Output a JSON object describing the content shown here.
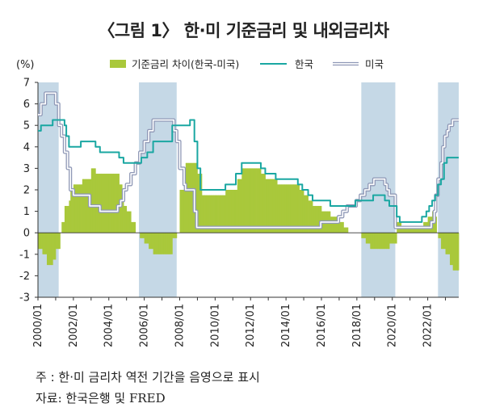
{
  "title": "〈그림 1〉 한·미 기준금리 및 내외금리차",
  "note": "주 : 한·미 금리차 역전 기간을 음영으로 표시",
  "source": "자료: 한국은행 및 FRED",
  "colors": {
    "korea": "#1aa7a2",
    "us": "#8f98b6",
    "diff": "#a9c83b",
    "shade": "#c5d8e6",
    "axis": "#333333"
  },
  "chart_data": {
    "type": "line",
    "title": "〈그림 1〉 한·미 기준금리 및 내외금리차",
    "ylabel": "(%)",
    "ylim": [
      -3,
      7
    ],
    "yticks": [
      -3,
      -2,
      -1,
      0,
      1,
      2,
      3,
      4,
      5,
      6,
      7
    ],
    "xlim": [
      2000.0,
      2023.75
    ],
    "xticks": [
      "2000/01",
      "2002/01",
      "2004/01",
      "2006/01",
      "2008/01",
      "2010/01",
      "2012/01",
      "2014/01",
      "2016/01",
      "2018/01",
      "2020/01",
      "2022/01"
    ],
    "legend": [
      "기준금리 차이(한국-미국)",
      "한국",
      "미국"
    ],
    "legend_position": "top",
    "shaded_periods": [
      [
        2000.0,
        2001.17
      ],
      [
        2005.7,
        2007.83
      ],
      [
        2018.25,
        2020.17
      ],
      [
        2022.58,
        2023.75
      ]
    ],
    "series": [
      {
        "name": "한국",
        "style": "line",
        "points": [
          [
            2000.0,
            4.75
          ],
          [
            2000.17,
            5.0
          ],
          [
            2000.83,
            5.25
          ],
          [
            2001.5,
            5.0
          ],
          [
            2001.6,
            4.5
          ],
          [
            2001.75,
            4.0
          ],
          [
            2002.42,
            4.25
          ],
          [
            2003.25,
            4.0
          ],
          [
            2003.5,
            3.75
          ],
          [
            2004.58,
            3.5
          ],
          [
            2004.83,
            3.25
          ],
          [
            2005.83,
            3.5
          ],
          [
            2006.17,
            3.75
          ],
          [
            2006.5,
            4.25
          ],
          [
            2007.58,
            5.0
          ],
          [
            2008.58,
            5.25
          ],
          [
            2008.83,
            4.25
          ],
          [
            2009.0,
            3.0
          ],
          [
            2009.17,
            2.0
          ],
          [
            2010.58,
            2.25
          ],
          [
            2011.17,
            2.75
          ],
          [
            2011.5,
            3.25
          ],
          [
            2012.58,
            3.0
          ],
          [
            2012.83,
            2.75
          ],
          [
            2013.42,
            2.5
          ],
          [
            2014.67,
            2.25
          ],
          [
            2014.92,
            2.0
          ],
          [
            2015.25,
            1.75
          ],
          [
            2015.5,
            1.5
          ],
          [
            2016.5,
            1.25
          ],
          [
            2017.92,
            1.5
          ],
          [
            2018.92,
            1.75
          ],
          [
            2019.58,
            1.5
          ],
          [
            2019.83,
            1.25
          ],
          [
            2020.25,
            0.75
          ],
          [
            2020.42,
            0.5
          ],
          [
            2021.67,
            0.75
          ],
          [
            2021.92,
            1.0
          ],
          [
            2022.08,
            1.25
          ],
          [
            2022.25,
            1.5
          ],
          [
            2022.42,
            1.75
          ],
          [
            2022.58,
            2.25
          ],
          [
            2022.75,
            2.5
          ],
          [
            2022.92,
            3.25
          ],
          [
            2023.08,
            3.5
          ],
          [
            2023.75,
            3.5
          ]
        ]
      },
      {
        "name": "미국",
        "style": "double-line",
        "points": [
          [
            2000.0,
            5.5
          ],
          [
            2000.17,
            6.0
          ],
          [
            2000.42,
            6.5
          ],
          [
            2001.0,
            6.0
          ],
          [
            2001.17,
            5.0
          ],
          [
            2001.33,
            4.5
          ],
          [
            2001.5,
            3.75
          ],
          [
            2001.67,
            3.0
          ],
          [
            2001.83,
            2.0
          ],
          [
            2002.0,
            1.75
          ],
          [
            2002.92,
            1.25
          ],
          [
            2003.5,
            1.0
          ],
          [
            2004.5,
            1.25
          ],
          [
            2004.67,
            1.5
          ],
          [
            2004.83,
            2.0
          ],
          [
            2005.0,
            2.25
          ],
          [
            2005.25,
            2.75
          ],
          [
            2005.5,
            3.25
          ],
          [
            2005.75,
            3.75
          ],
          [
            2006.0,
            4.25
          ],
          [
            2006.25,
            4.75
          ],
          [
            2006.5,
            5.25
          ],
          [
            2007.67,
            4.75
          ],
          [
            2007.83,
            4.25
          ],
          [
            2008.0,
            3.0
          ],
          [
            2008.25,
            2.25
          ],
          [
            2008.33,
            2.0
          ],
          [
            2008.83,
            1.0
          ],
          [
            2008.96,
            0.25
          ],
          [
            2015.96,
            0.5
          ],
          [
            2016.96,
            0.75
          ],
          [
            2017.2,
            1.0
          ],
          [
            2017.45,
            1.25
          ],
          [
            2017.96,
            1.5
          ],
          [
            2018.2,
            1.75
          ],
          [
            2018.45,
            2.0
          ],
          [
            2018.7,
            2.25
          ],
          [
            2018.96,
            2.5
          ],
          [
            2019.58,
            2.25
          ],
          [
            2019.7,
            2.0
          ],
          [
            2019.83,
            1.75
          ],
          [
            2020.17,
            0.25
          ],
          [
            2022.2,
            0.5
          ],
          [
            2022.37,
            1.0
          ],
          [
            2022.45,
            1.75
          ],
          [
            2022.58,
            2.5
          ],
          [
            2022.75,
            3.25
          ],
          [
            2022.85,
            4.0
          ],
          [
            2022.96,
            4.5
          ],
          [
            2023.1,
            4.75
          ],
          [
            2023.2,
            5.0
          ],
          [
            2023.4,
            5.25
          ],
          [
            2023.75,
            5.25
          ]
        ]
      },
      {
        "name": "기준금리 차이(한국-미국)",
        "style": "bar-area",
        "points": [
          [
            2000.0,
            -0.75
          ],
          [
            2000.17,
            -1.0
          ],
          [
            2000.42,
            -1.5
          ],
          [
            2000.83,
            -1.25
          ],
          [
            2001.0,
            -0.75
          ],
          [
            2001.17,
            0.0
          ],
          [
            2001.33,
            0.5
          ],
          [
            2001.5,
            1.25
          ],
          [
            2001.67,
            1.5
          ],
          [
            2001.83,
            2.0
          ],
          [
            2002.0,
            2.25
          ],
          [
            2002.42,
            2.5
          ],
          [
            2002.92,
            3.0
          ],
          [
            2003.25,
            2.75
          ],
          [
            2004.58,
            2.25
          ],
          [
            2004.67,
            2.0
          ],
          [
            2004.83,
            1.25
          ],
          [
            2005.0,
            1.0
          ],
          [
            2005.25,
            0.5
          ],
          [
            2005.5,
            0.0
          ],
          [
            2005.75,
            -0.25
          ],
          [
            2006.0,
            -0.5
          ],
          [
            2006.25,
            -0.75
          ],
          [
            2006.5,
            -1.0
          ],
          [
            2007.58,
            -0.25
          ],
          [
            2007.83,
            0.0
          ],
          [
            2008.0,
            2.0
          ],
          [
            2008.33,
            3.25
          ],
          [
            2008.83,
            3.25
          ],
          [
            2009.0,
            2.75
          ],
          [
            2009.17,
            1.75
          ],
          [
            2010.58,
            2.0
          ],
          [
            2011.17,
            2.5
          ],
          [
            2011.5,
            3.0
          ],
          [
            2012.58,
            2.75
          ],
          [
            2012.83,
            2.5
          ],
          [
            2013.42,
            2.25
          ],
          [
            2014.67,
            2.0
          ],
          [
            2014.92,
            1.75
          ],
          [
            2015.25,
            1.5
          ],
          [
            2015.5,
            1.25
          ],
          [
            2015.96,
            1.0
          ],
          [
            2016.5,
            0.75
          ],
          [
            2016.96,
            0.5
          ],
          [
            2017.2,
            0.25
          ],
          [
            2017.45,
            0.0
          ],
          [
            2018.2,
            -0.25
          ],
          [
            2018.45,
            -0.5
          ],
          [
            2018.7,
            -0.75
          ],
          [
            2019.0,
            -0.75
          ],
          [
            2019.58,
            -0.75
          ],
          [
            2019.83,
            -0.5
          ],
          [
            2020.17,
            0.5
          ],
          [
            2020.42,
            0.25
          ],
          [
            2021.67,
            0.5
          ],
          [
            2021.92,
            0.75
          ],
          [
            2022.2,
            1.0
          ],
          [
            2022.37,
            0.75
          ],
          [
            2022.45,
            0.0
          ],
          [
            2022.58,
            -0.25
          ],
          [
            2022.75,
            -0.75
          ],
          [
            2022.92,
            -1.0
          ],
          [
            2023.2,
            -1.5
          ],
          [
            2023.4,
            -1.75
          ],
          [
            2023.75,
            -1.75
          ]
        ]
      }
    ]
  }
}
